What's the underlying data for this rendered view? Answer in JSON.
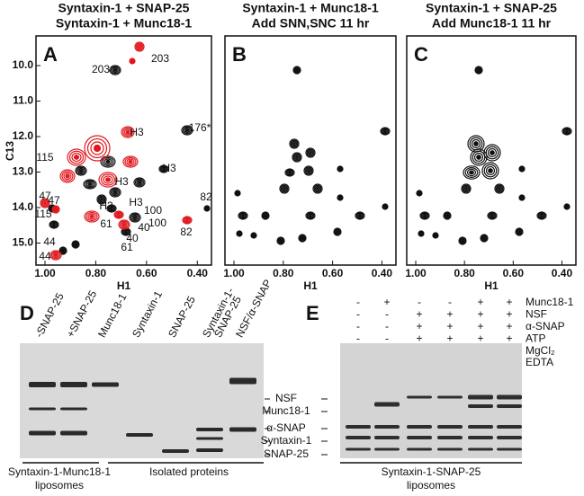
{
  "panel_letters": [
    "A",
    "B",
    "C",
    "D",
    "E"
  ],
  "spectra": [
    {
      "title": [
        "Syntaxin-1 + SNAP-25",
        "Syntaxin-1 + Munc18-1"
      ]
    },
    {
      "title": [
        "Syntaxin-1 + Munc18-1",
        "Add SNN,SNC 11 hr"
      ]
    },
    {
      "title": [
        "Syntaxin-1 + SNAP-25",
        "Add Munc18-1 11 hr"
      ]
    }
  ],
  "x_axis_label": "H1",
  "y_axis_label": "C13",
  "x_ticks": [
    "1.00",
    "0.80",
    "0.60",
    "0.40"
  ],
  "y_ticks": [
    "10.0",
    "11.0",
    "12.0",
    "13.0",
    "14.0",
    "15.0"
  ],
  "peak_labels_black": [
    "203",
    "176*",
    "H3",
    "H3",
    "H3",
    "82",
    "100",
    "40",
    "47",
    "115",
    "61",
    "44"
  ],
  "peak_labels_red": [
    "203",
    "H3",
    "115",
    "47",
    "H3",
    "61",
    "100",
    "40",
    "82",
    "44"
  ],
  "gel_d": {
    "lanes": [
      [
        "-SNAP-25"
      ],
      [
        "+SNAP-25"
      ],
      [
        "Munc18-1"
      ],
      [
        "Syntaxin-1"
      ],
      [
        "SNAP-25"
      ],
      [
        "Syntaxin-1-",
        "SNAP-25"
      ],
      [
        "NSF/α-SNAP"
      ]
    ],
    "groups": [
      [
        "Syntaxin-1-Munc18-1",
        "liposomes"
      ],
      [
        "Isolated proteins"
      ]
    ]
  },
  "band_labels": [
    "NSF",
    "Munc18-1",
    "α-SNAP",
    "Syntaxin-1",
    "SNAP-25"
  ],
  "gel_e": {
    "conditions": [
      {
        "name": "Munc18-1",
        "signs": [
          "-",
          "+",
          "-",
          "-",
          "+",
          "+"
        ]
      },
      {
        "name": "NSF",
        "signs": [
          "-",
          "-",
          "+",
          "+",
          "+",
          "+"
        ]
      },
      {
        "name": "α-SNAP",
        "signs": [
          "-",
          "-",
          "+",
          "+",
          "+",
          "+"
        ]
      },
      {
        "name": "ATP",
        "signs": [
          "-",
          "-",
          "+",
          "+",
          "+",
          "+"
        ]
      },
      {
        "name": "MgCl₂",
        "signs": [
          "-",
          "-",
          "-",
          "+",
          "-",
          "+"
        ]
      },
      {
        "name": "EDTA",
        "signs": [
          "-",
          "-",
          "+",
          "-",
          "+",
          "-"
        ]
      }
    ],
    "group": [
      "Syntaxin-1-SNAP-25",
      "liposomes"
    ]
  }
}
